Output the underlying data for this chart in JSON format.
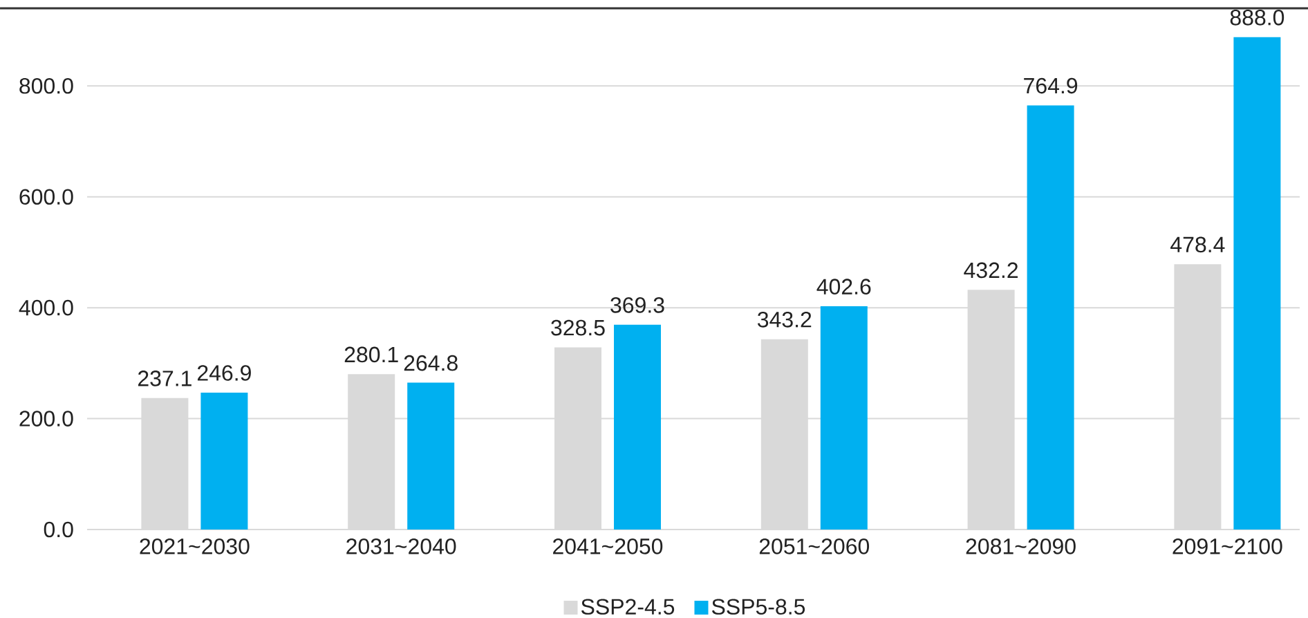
{
  "chart_data": {
    "type": "bar",
    "categories": [
      "2021~2030",
      "2031~2040",
      "2041~2050",
      "2051~2060",
      "2081~2090",
      "2091~2100"
    ],
    "series": [
      {
        "name": "SSP2-4.5",
        "color": "#d9d9d9",
        "values": [
          237.1,
          280.1,
          328.5,
          343.2,
          432.2,
          478.4
        ],
        "value_labels": [
          "237.1",
          "280.1",
          "328.5",
          "343.2",
          "432.2",
          "478.4"
        ]
      },
      {
        "name": "SSP5-8.5",
        "color": "#00b0f0",
        "values": [
          246.9,
          264.8,
          369.3,
          402.6,
          764.9,
          888.0
        ],
        "value_labels": [
          "246.9",
          "264.8",
          "369.3",
          "402.6",
          "764.9",
          "888.0"
        ]
      }
    ],
    "ylim": [
      0,
      940
    ],
    "yticks": [
      {
        "value": 0,
        "label": "0.0"
      },
      {
        "value": 200,
        "label": "200.0"
      },
      {
        "value": 400,
        "label": "400.0"
      },
      {
        "value": 600,
        "label": "600.0"
      },
      {
        "value": 800,
        "label": "800.0"
      }
    ],
    "grid": "y",
    "legend": "bottom"
  }
}
